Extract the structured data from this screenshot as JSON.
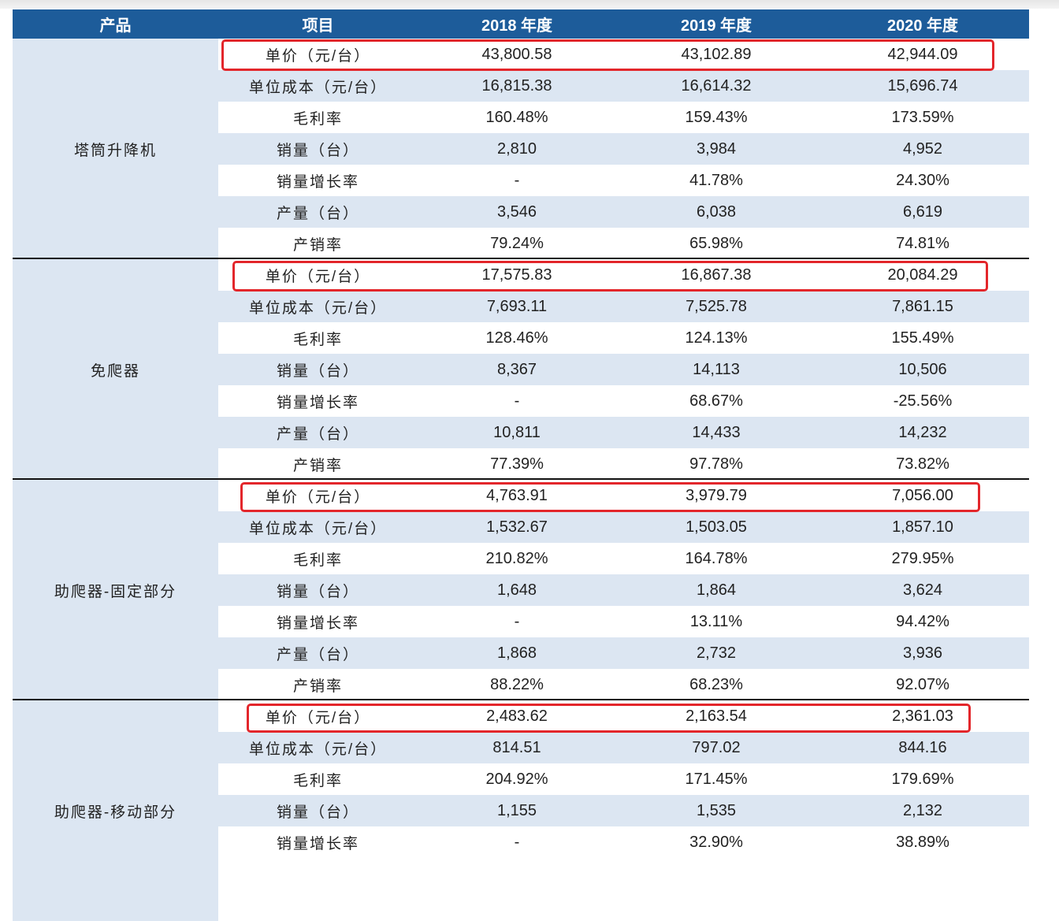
{
  "table": {
    "header": [
      "产品",
      "项目",
      "2018 年度",
      "2019 年度",
      "2020 年度"
    ],
    "groups": [
      {
        "product": "塔筒升降机",
        "rows": [
          [
            "单价（元/台）",
            "43,800.58",
            "43,102.89",
            "42,944.09"
          ],
          [
            "单位成本（元/台）",
            "16,815.38",
            "16,614.32",
            "15,696.74"
          ],
          [
            "毛利率",
            "160.48%",
            "159.43%",
            "173.59%"
          ],
          [
            "销量（台）",
            "2,810",
            "3,984",
            "4,952"
          ],
          [
            "销量增长率",
            "-",
            "41.78%",
            "24.30%"
          ],
          [
            "产量（台）",
            "3,546",
            "6,038",
            "6,619"
          ],
          [
            "产销率",
            "79.24%",
            "65.98%",
            "74.81%"
          ]
        ]
      },
      {
        "product": "免爬器",
        "rows": [
          [
            "单价（元/台）",
            "17,575.83",
            "16,867.38",
            "20,084.29"
          ],
          [
            "单位成本（元/台）",
            "7,693.11",
            "7,525.78",
            "7,861.15"
          ],
          [
            "毛利率",
            "128.46%",
            "124.13%",
            "155.49%"
          ],
          [
            "销量（台）",
            "8,367",
            "14,113",
            "10,506"
          ],
          [
            "销量增长率",
            "-",
            "68.67%",
            "-25.56%"
          ],
          [
            "产量（台）",
            "10,811",
            "14,433",
            "14,232"
          ],
          [
            "产销率",
            "77.39%",
            "97.78%",
            "73.82%"
          ]
        ]
      },
      {
        "product": "助爬器-固定部分",
        "rows": [
          [
            "单价（元/台）",
            "4,763.91",
            "3,979.79",
            "7,056.00"
          ],
          [
            "单位成本（元/台）",
            "1,532.67",
            "1,503.05",
            "1,857.10"
          ],
          [
            "毛利率",
            "210.82%",
            "164.78%",
            "279.95%"
          ],
          [
            "销量（台）",
            "1,648",
            "1,864",
            "3,624"
          ],
          [
            "销量增长率",
            "-",
            "13.11%",
            "94.42%"
          ],
          [
            "产量（台）",
            "1,868",
            "2,732",
            "3,936"
          ],
          [
            "产销率",
            "88.22%",
            "68.23%",
            "92.07%"
          ]
        ]
      },
      {
        "product": "助爬器-移动部分",
        "rows": [
          [
            "单价（元/台）",
            "2,483.62",
            "2,163.54",
            "2,361.03"
          ],
          [
            "单位成本（元/台）",
            "814.51",
            "797.02",
            "844.16"
          ],
          [
            "毛利率",
            "204.92%",
            "171.45%",
            "179.69%"
          ],
          [
            "销量（台）",
            "1,155",
            "1,535",
            "2,132"
          ],
          [
            "销量增长率",
            "-",
            "32.90%",
            "38.89%"
          ]
        ]
      }
    ]
  }
}
